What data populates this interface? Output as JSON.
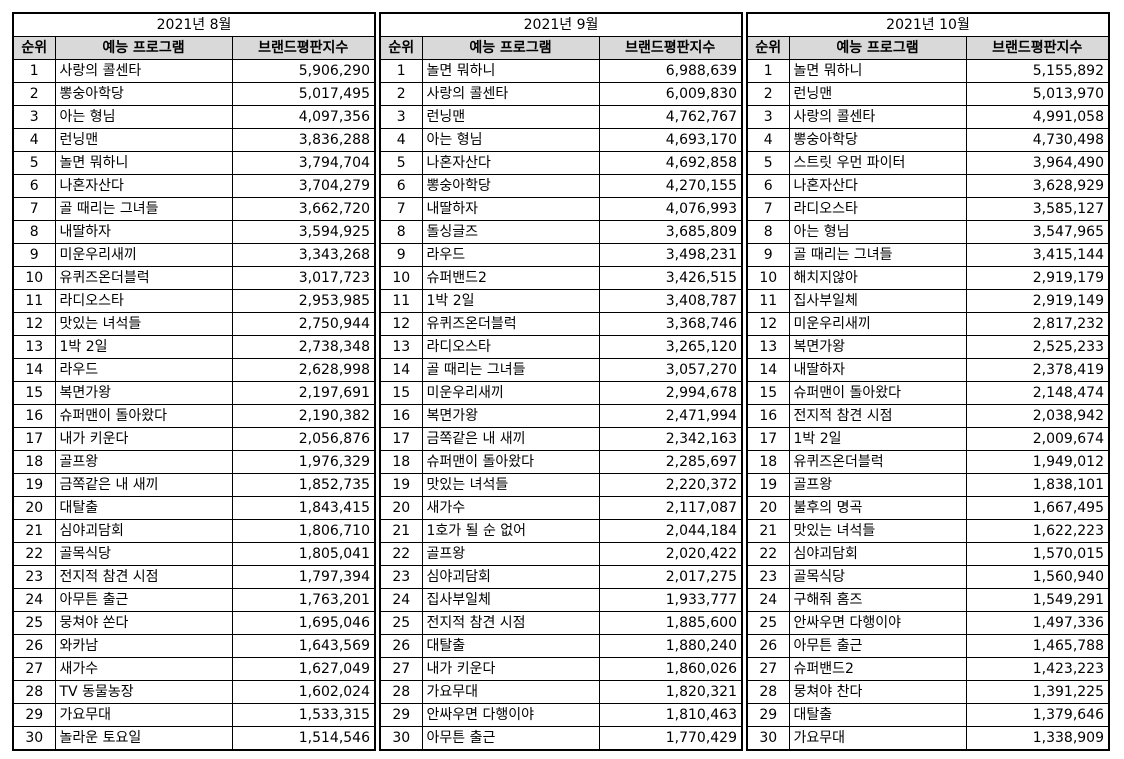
{
  "headers": {
    "rank": "순위",
    "program": "예능 프로그램",
    "score": "브랜드평판지수"
  },
  "months": [
    {
      "title": "2021년 8월",
      "rows": [
        [
          "1",
          "사랑의 콜센타",
          "5,906,290"
        ],
        [
          "2",
          "뽕숭아학당",
          "5,017,495"
        ],
        [
          "3",
          "아는 형님",
          "4,097,356"
        ],
        [
          "4",
          "런닝맨",
          "3,836,288"
        ],
        [
          "5",
          "놀면 뭐하니",
          "3,794,704"
        ],
        [
          "6",
          "나혼자산다",
          "3,704,279"
        ],
        [
          "7",
          "골 때리는 그녀들",
          "3,662,720"
        ],
        [
          "8",
          "내딸하자",
          "3,594,925"
        ],
        [
          "9",
          "미운우리새끼",
          "3,343,268"
        ],
        [
          "10",
          "유퀴즈온더블럭",
          "3,017,723"
        ],
        [
          "11",
          "라디오스타",
          "2,953,985"
        ],
        [
          "12",
          "맛있는 녀석들",
          "2,750,944"
        ],
        [
          "13",
          "1박 2일",
          "2,738,348"
        ],
        [
          "14",
          "라우드",
          "2,628,998"
        ],
        [
          "15",
          "복면가왕",
          "2,197,691"
        ],
        [
          "16",
          "슈퍼맨이 돌아왔다",
          "2,190,382"
        ],
        [
          "17",
          "내가 키운다",
          "2,056,876"
        ],
        [
          "18",
          "골프왕",
          "1,976,329"
        ],
        [
          "19",
          "금쪽같은 내 새끼",
          "1,852,735"
        ],
        [
          "20",
          "대탈출",
          "1,843,415"
        ],
        [
          "21",
          "심야괴담회",
          "1,806,710"
        ],
        [
          "22",
          "골목식당",
          "1,805,041"
        ],
        [
          "23",
          "전지적 참견 시점",
          "1,797,394"
        ],
        [
          "24",
          "아무튼 출근",
          "1,763,201"
        ],
        [
          "25",
          "뭉쳐야 쏜다",
          "1,695,046"
        ],
        [
          "26",
          "와카남",
          "1,643,569"
        ],
        [
          "27",
          "새가수",
          "1,627,049"
        ],
        [
          "28",
          "TV 동물농장",
          "1,602,024"
        ],
        [
          "29",
          "가요무대",
          "1,533,315"
        ],
        [
          "30",
          "놀라운 토요일",
          "1,514,546"
        ]
      ]
    },
    {
      "title": "2021년 9월",
      "rows": [
        [
          "1",
          "놀면 뭐하니",
          "6,988,639"
        ],
        [
          "2",
          "사랑의 콜센타",
          "6,009,830"
        ],
        [
          "3",
          "런닝맨",
          "4,762,767"
        ],
        [
          "4",
          "아는 형님",
          "4,693,170"
        ],
        [
          "5",
          "나혼자산다",
          "4,692,858"
        ],
        [
          "6",
          "뽕숭아학당",
          "4,270,155"
        ],
        [
          "7",
          "내딸하자",
          "4,076,993"
        ],
        [
          "8",
          "돌싱글즈",
          "3,685,809"
        ],
        [
          "9",
          "라우드",
          "3,498,231"
        ],
        [
          "10",
          "슈퍼밴드2",
          "3,426,515"
        ],
        [
          "11",
          "1박 2일",
          "3,408,787"
        ],
        [
          "12",
          "유퀴즈온더블럭",
          "3,368,746"
        ],
        [
          "13",
          "라디오스타",
          "3,265,120"
        ],
        [
          "14",
          "골 때리는 그녀들",
          "3,057,270"
        ],
        [
          "15",
          "미운우리새끼",
          "2,994,678"
        ],
        [
          "16",
          "복면가왕",
          "2,471,994"
        ],
        [
          "17",
          "금쪽같은 내 새끼",
          "2,342,163"
        ],
        [
          "18",
          "슈퍼맨이 돌아왔다",
          "2,285,697"
        ],
        [
          "19",
          "맛있는 녀석들",
          "2,220,372"
        ],
        [
          "20",
          "새가수",
          "2,117,087"
        ],
        [
          "21",
          "1호가 될 순 없어",
          "2,044,184"
        ],
        [
          "22",
          "골프왕",
          "2,020,422"
        ],
        [
          "23",
          "심야괴담회",
          "2,017,275"
        ],
        [
          "24",
          "집사부일체",
          "1,933,777"
        ],
        [
          "25",
          "전지적 참견 시점",
          "1,885,600"
        ],
        [
          "26",
          "대탈출",
          "1,880,240"
        ],
        [
          "27",
          "내가 키운다",
          "1,860,026"
        ],
        [
          "28",
          "가요무대",
          "1,820,321"
        ],
        [
          "29",
          "안싸우면 다행이야",
          "1,810,463"
        ],
        [
          "30",
          "아무튼 출근",
          "1,770,429"
        ]
      ]
    },
    {
      "title": "2021년 10월",
      "rows": [
        [
          "1",
          "놀면 뭐하니",
          "5,155,892"
        ],
        [
          "2",
          "런닝맨",
          "5,013,970"
        ],
        [
          "3",
          "사랑의 콜센타",
          "4,991,058"
        ],
        [
          "4",
          "뽕숭아학당",
          "4,730,498"
        ],
        [
          "5",
          "스트릿 우먼 파이터",
          "3,964,490"
        ],
        [
          "6",
          "나혼자산다",
          "3,628,929"
        ],
        [
          "7",
          "라디오스타",
          "3,585,127"
        ],
        [
          "8",
          "아는 형님",
          "3,547,965"
        ],
        [
          "9",
          "골 때리는 그녀들",
          "3,415,144"
        ],
        [
          "10",
          "해치지않아",
          "2,919,179"
        ],
        [
          "11",
          "집사부일체",
          "2,919,149"
        ],
        [
          "12",
          "미운우리새끼",
          "2,817,232"
        ],
        [
          "13",
          "복면가왕",
          "2,525,233"
        ],
        [
          "14",
          "내딸하자",
          "2,378,419"
        ],
        [
          "15",
          "슈퍼맨이 돌아왔다",
          "2,148,474"
        ],
        [
          "16",
          "전지적 참견 시점",
          "2,038,942"
        ],
        [
          "17",
          "1박 2일",
          "2,009,674"
        ],
        [
          "18",
          "유퀴즈온더블럭",
          "1,949,012"
        ],
        [
          "19",
          "골프왕",
          "1,838,101"
        ],
        [
          "20",
          "불후의 명곡",
          "1,667,495"
        ],
        [
          "21",
          "맛있는 녀석들",
          "1,622,223"
        ],
        [
          "22",
          "심야괴담회",
          "1,570,015"
        ],
        [
          "23",
          "골목식당",
          "1,560,940"
        ],
        [
          "24",
          "구해줘 홈즈",
          "1,549,291"
        ],
        [
          "25",
          "안싸우면 다행이야",
          "1,497,336"
        ],
        [
          "26",
          "아무튼 출근",
          "1,465,788"
        ],
        [
          "27",
          "슈퍼밴드2",
          "1,423,223"
        ],
        [
          "28",
          "뭉쳐야 찬다",
          "1,391,225"
        ],
        [
          "29",
          "대탈출",
          "1,379,646"
        ],
        [
          "30",
          "가요무대",
          "1,338,909"
        ]
      ]
    }
  ]
}
